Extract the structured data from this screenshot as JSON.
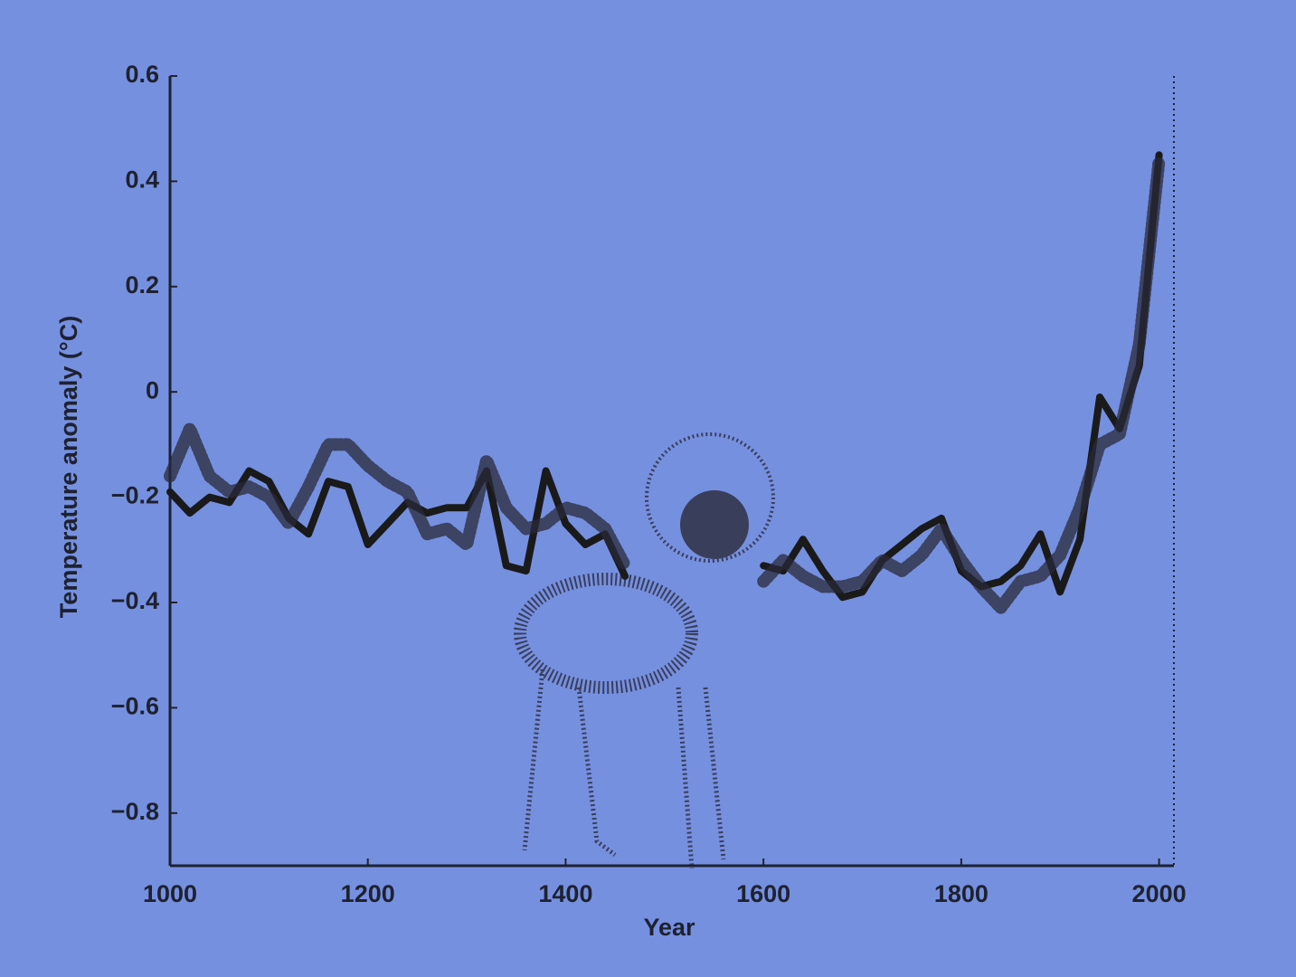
{
  "chart_data": {
    "type": "line",
    "x_label": "Year",
    "y_label": "Temperature anomaly (°C)",
    "x": [
      1000,
      1020,
      1040,
      1060,
      1080,
      1100,
      1120,
      1140,
      1160,
      1180,
      1200,
      1220,
      1240,
      1260,
      1280,
      1300,
      1320,
      1340,
      1360,
      1380,
      1400,
      1420,
      1440,
      1460,
      1480,
      1500,
      1520,
      1540,
      1560,
      1580,
      1600,
      1620,
      1640,
      1660,
      1680,
      1700,
      1720,
      1740,
      1760,
      1780,
      1800,
      1820,
      1840,
      1860,
      1880,
      1900,
      1920,
      1940,
      1960,
      1980,
      2000
    ],
    "series": [
      {
        "color": "#1a1a1a",
        "style": "solid",
        "values": [
          -0.19,
          -0.23,
          -0.2,
          -0.21,
          -0.15,
          -0.17,
          -0.24,
          -0.27,
          -0.17,
          -0.18,
          -0.29,
          -0.25,
          -0.21,
          -0.23,
          -0.22,
          -0.22,
          -0.15,
          -0.33,
          -0.34,
          -0.15,
          -0.25,
          -0.29,
          -0.27,
          -0.35,
          null,
          null,
          null,
          null,
          null,
          null,
          -0.33,
          -0.34,
          -0.28,
          -0.34,
          -0.39,
          -0.38,
          -0.32,
          -0.29,
          -0.26,
          -0.24,
          -0.34,
          -0.37,
          -0.36,
          -0.33,
          -0.27,
          -0.38,
          -0.28,
          -0.01,
          -0.07,
          0.05,
          0.45
        ]
      },
      {
        "color": "#2a2a3a",
        "style": "dotted",
        "values": [
          -0.16,
          -0.07,
          -0.16,
          -0.19,
          -0.18,
          -0.2,
          -0.25,
          -0.18,
          -0.1,
          -0.1,
          -0.14,
          -0.17,
          -0.19,
          -0.27,
          -0.26,
          -0.29,
          -0.13,
          -0.22,
          -0.26,
          -0.25,
          -0.22,
          -0.23,
          -0.26,
          -0.33,
          null,
          null,
          null,
          null,
          null,
          null,
          -0.36,
          -0.32,
          -0.35,
          -0.37,
          -0.37,
          -0.36,
          -0.32,
          -0.34,
          -0.31,
          -0.26,
          -0.32,
          -0.37,
          -0.41,
          -0.36,
          -0.35,
          -0.31,
          -0.22,
          -0.1,
          -0.08,
          0.09,
          0.44
        ]
      }
    ],
    "xlim": [
      1000,
      2015
    ],
    "ylim": [
      -0.9,
      0.6
    ],
    "xticks": [
      1000,
      1200,
      1400,
      1600,
      1800,
      2000
    ],
    "yticks": [
      0.6,
      0.4,
      0.2,
      0,
      {
        "value": -0.2,
        "label": "−0.2"
      },
      {
        "value": -0.4,
        "label": "−0.4"
      },
      {
        "value": -0.6,
        "label": "−0.6"
      },
      {
        "value": -0.8,
        "label": "−0.8"
      }
    ],
    "grid": false
  }
}
